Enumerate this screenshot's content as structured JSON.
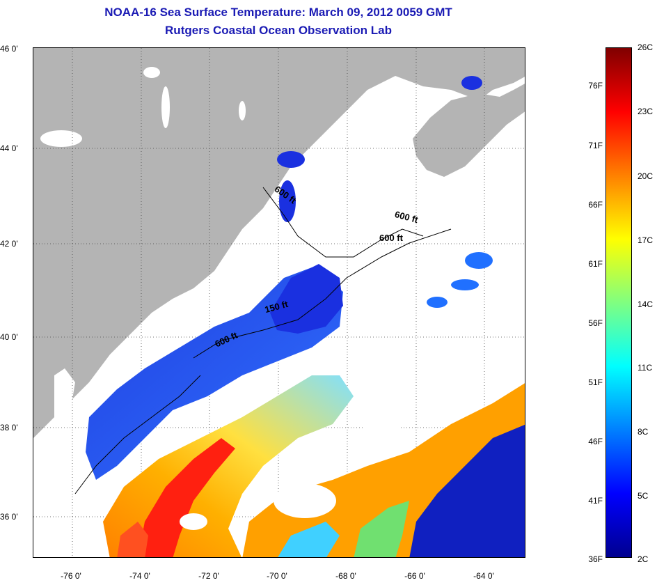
{
  "title": {
    "line1": "NOAA-16 Sea Surface Temperature:  March 09, 2012 0059 GMT",
    "line2": "Rutgers Coastal Ocean Observation Lab"
  },
  "map": {
    "lat_labels": [
      "46 0'",
      "44 0'",
      "42 0'",
      "40 0'",
      "38 0'",
      "36 0'"
    ],
    "lon_labels": [
      "-76 0'",
      "-74 0'",
      "-72 0'",
      "-70 0'",
      "-68 0'",
      "-66 0'",
      "-64 0'"
    ],
    "isobath_labels": [
      "600 ft",
      "600 ft",
      "600 ft",
      "150 ft",
      "600 ft"
    ],
    "land_color": "#b4b4b4",
    "cloud_color": "#ffffff"
  },
  "colorbar": {
    "fahrenheit_labels": [
      "76F",
      "71F",
      "66F",
      "61F",
      "56F",
      "51F",
      "46F",
      "41F",
      "36F"
    ],
    "celsius_labels": [
      "26C",
      "23C",
      "20C",
      "17C",
      "14C",
      "11C",
      "8C",
      "5C",
      "2C"
    ],
    "colors": [
      "#00008f",
      "#0000ff",
      "#0080ff",
      "#00ffff",
      "#80ff80",
      "#ffff00",
      "#ff8000",
      "#ff0000",
      "#800000"
    ]
  }
}
